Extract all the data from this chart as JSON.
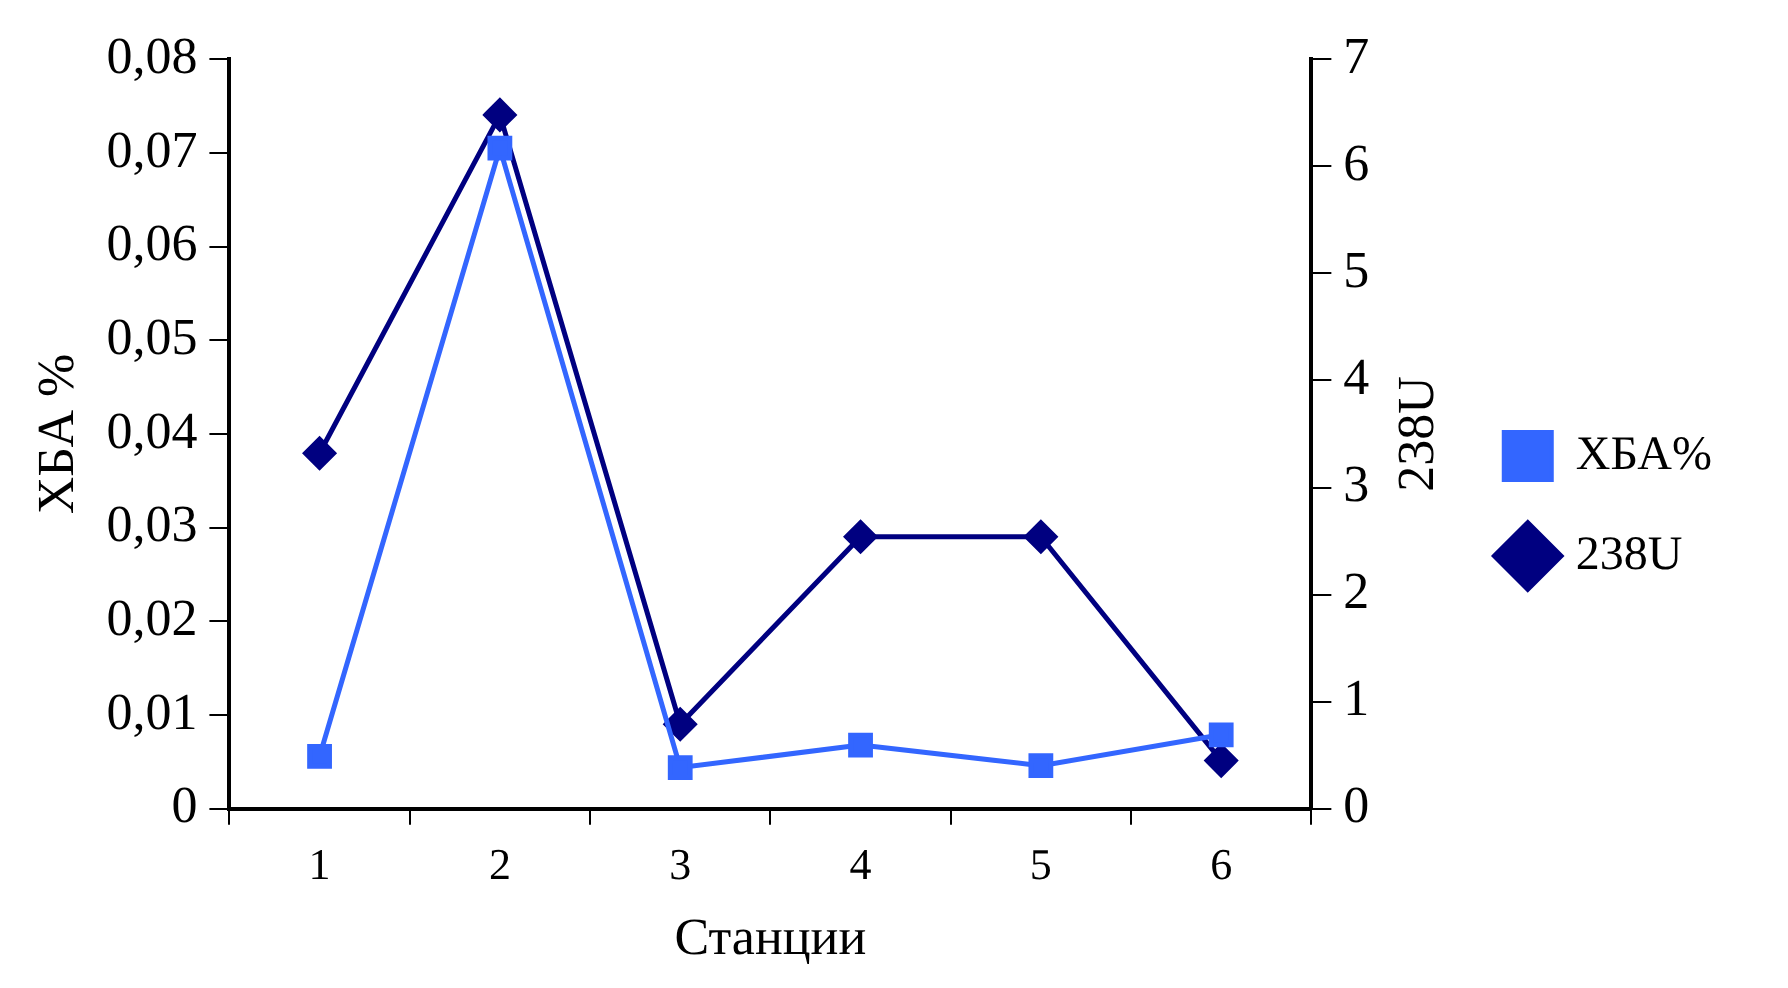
{
  "chart_data": {
    "type": "line",
    "xlabel": "Станции",
    "ylabel": "ХБА %",
    "y2label": "238U",
    "categories": [
      "1",
      "2",
      "3",
      "4",
      "5",
      "6"
    ],
    "series": [
      {
        "name": "ХБА%",
        "color": "#3366ff",
        "marker": "square",
        "values": [
          0.0056,
          0.0705,
          0.0044,
          0.0068,
          0.0046,
          0.0079
        ]
      },
      {
        "name": "238U",
        "color": "#000080",
        "marker": "diamond",
        "axis": "y2",
        "values": [
          3.32,
          6.48,
          0.79,
          2.54,
          2.54,
          0.45
        ]
      }
    ],
    "ylim": [
      0,
      0.08
    ],
    "yticks": [
      0,
      {
        "value": 0.01,
        "label": "0,01"
      },
      {
        "value": 0.02,
        "label": "0,02"
      },
      {
        "value": 0.03,
        "label": "0,03"
      },
      {
        "value": 0.04,
        "label": "0,04"
      },
      {
        "value": 0.05,
        "label": "0,05"
      },
      {
        "value": 0.06,
        "label": "0,06"
      },
      {
        "value": 0.07,
        "label": "0,07"
      },
      {
        "value": 0.08,
        "label": "0,08"
      }
    ],
    "y2lim": [
      0,
      7
    ],
    "y2ticks": [
      0,
      1,
      2,
      3,
      4,
      5,
      6,
      7
    ],
    "grid": false,
    "legend": "right",
    "line_style": "solid"
  }
}
